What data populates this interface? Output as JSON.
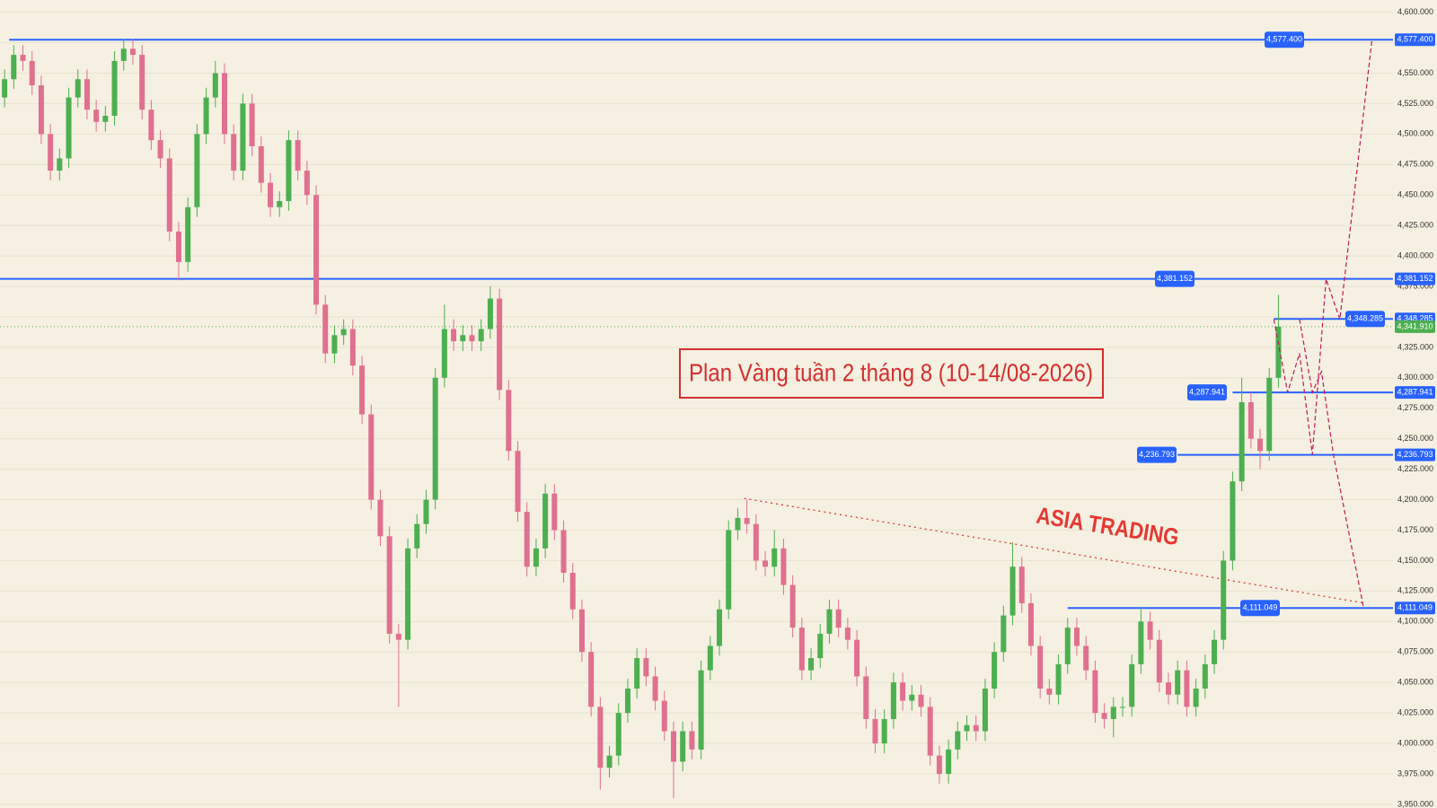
{
  "chart_data": {
    "type": "candlestick",
    "title": "Plan Vàng tuần 2 tháng 8 (10-14/08-2026)",
    "annotation": "ASIA TRADING",
    "up_color": "#4caf50",
    "down_color": "#e0708f",
    "xlim": [
      -0.5,
      151.5
    ],
    "ylim": [
      3947,
      4610
    ],
    "grid": true,
    "open": [
      4530,
      4545,
      4565,
      4560,
      4540,
      4500,
      4470,
      4480,
      4530,
      4545,
      4520,
      4510,
      4515,
      4560,
      4570,
      4565,
      4520,
      4495,
      4480,
      4420,
      4395,
      4440,
      4500,
      4530,
      4550,
      4500,
      4470,
      4525,
      4490,
      4460,
      4440,
      4445,
      4495,
      4470,
      4450,
      4360,
      4320,
      4335,
      4340,
      4310,
      4270,
      4200,
      4170,
      4090,
      4085,
      4160,
      4180,
      4200,
      4300,
      4340,
      4330,
      4335,
      4330,
      4340,
      4365,
      4290,
      4240,
      4190,
      4145,
      4160,
      4205,
      4175,
      4140,
      4110,
      4075,
      4030,
      3980,
      3990,
      4025,
      4045,
      4070,
      4055,
      4035,
      4010,
      3985,
      4010,
      3995,
      4060,
      4080,
      4110,
      4175,
      4185,
      4180,
      4150,
      4145,
      4160,
      4130,
      4095,
      4060,
      4070,
      4090,
      4110,
      4095,
      4085,
      4055,
      4020,
      4000,
      4020,
      4050,
      4035,
      4040,
      4030,
      3990,
      3975,
      3995,
      4010,
      4015,
      4010,
      4045,
      4075,
      4105,
      4145,
      4115,
      4080,
      4045,
      4040,
      4065,
      4095,
      4080,
      4060,
      4025,
      4020,
      4030,
      4030,
      4065,
      4100,
      4085,
      4050,
      4040,
      4060,
      4030,
      4045,
      4065,
      4085,
      4150,
      4215,
      4280,
      4250,
      4240,
      4300
    ],
    "high": [
      4553,
      4573,
      4573,
      4568,
      4548,
      4508,
      4488,
      4538,
      4553,
      4553,
      4528,
      4523,
      4568,
      4578,
      4578,
      4573,
      4528,
      4503,
      4488,
      4428,
      4448,
      4508,
      4538,
      4560,
      4558,
      4508,
      4533,
      4533,
      4498,
      4468,
      4453,
      4503,
      4503,
      4478,
      4458,
      4368,
      4343,
      4348,
      4348,
      4318,
      4278,
      4208,
      4178,
      4098,
      4168,
      4188,
      4208,
      4308,
      4360,
      4348,
      4343,
      4343,
      4348,
      4375,
      4373,
      4298,
      4248,
      4198,
      4168,
      4213,
      4213,
      4183,
      4148,
      4118,
      4083,
      4038,
      3998,
      4033,
      4053,
      4078,
      4078,
      4063,
      4043,
      4018,
      4018,
      4018,
      4068,
      4088,
      4118,
      4183,
      4193,
      4200,
      4188,
      4158,
      4175,
      4168,
      4138,
      4103,
      4078,
      4098,
      4118,
      4118,
      4103,
      4093,
      4063,
      4028,
      4028,
      4058,
      4058,
      4048,
      4048,
      4038,
      3998,
      4003,
      4018,
      4023,
      4023,
      4053,
      4083,
      4113,
      4165,
      4153,
      4123,
      4088,
      4053,
      4073,
      4103,
      4103,
      4088,
      4068,
      4033,
      4038,
      4038,
      4073,
      4112,
      4108,
      4093,
      4058,
      4068,
      4068,
      4053,
      4073,
      4093,
      4158,
      4223,
      4300,
      4288,
      4258,
      4308,
      4368
    ],
    "low": [
      4522,
      4537,
      4552,
      4532,
      4492,
      4462,
      4462,
      4472,
      4522,
      4512,
      4502,
      4502,
      4507,
      4552,
      4557,
      4512,
      4487,
      4472,
      4412,
      4380,
      4387,
      4432,
      4492,
      4522,
      4492,
      4462,
      4462,
      4482,
      4452,
      4432,
      4432,
      4437,
      4462,
      4442,
      4352,
      4312,
      4312,
      4327,
      4302,
      4262,
      4192,
      4162,
      4082,
      4030,
      4077,
      4152,
      4172,
      4192,
      4292,
      4322,
      4322,
      4322,
      4322,
      4332,
      4282,
      4232,
      4182,
      4137,
      4137,
      4152,
      4167,
      4132,
      4102,
      4067,
      4022,
      3962,
      3972,
      3982,
      4017,
      4037,
      4047,
      4027,
      4002,
      3955,
      3977,
      3987,
      3987,
      4052,
      4072,
      4102,
      4167,
      4172,
      4142,
      4137,
      4137,
      4122,
      4087,
      4052,
      4052,
      4062,
      4082,
      4087,
      4077,
      4047,
      4012,
      3992,
      3992,
      4012,
      4027,
      4027,
      4022,
      3982,
      3967,
      3967,
      3987,
      4002,
      4002,
      4002,
      4037,
      4067,
      4097,
      4107,
      4072,
      4037,
      4032,
      4032,
      4057,
      4072,
      4052,
      4017,
      4012,
      4005,
      4022,
      4022,
      4057,
      4077,
      4042,
      4032,
      4032,
      4022,
      4022,
      4037,
      4057,
      4077,
      4142,
      4207,
      4242,
      4225,
      4232,
      4292
    ],
    "close": [
      4545,
      4565,
      4560,
      4540,
      4500,
      4470,
      4480,
      4530,
      4545,
      4520,
      4510,
      4515,
      4560,
      4570,
      4565,
      4520,
      4495,
      4480,
      4420,
      4395,
      4440,
      4500,
      4530,
      4550,
      4500,
      4470,
      4525,
      4490,
      4460,
      4440,
      4445,
      4495,
      4470,
      4450,
      4360,
      4320,
      4335,
      4340,
      4310,
      4270,
      4200,
      4170,
      4090,
      4085,
      4160,
      4180,
      4200,
      4300,
      4340,
      4330,
      4335,
      4330,
      4340,
      4365,
      4290,
      4240,
      4190,
      4145,
      4160,
      4205,
      4175,
      4140,
      4110,
      4075,
      4030,
      3980,
      3990,
      4025,
      4045,
      4070,
      4055,
      4035,
      4010,
      3985,
      4010,
      3995,
      4060,
      4080,
      4110,
      4175,
      4185,
      4180,
      4150,
      4145,
      4160,
      4130,
      4095,
      4060,
      4070,
      4090,
      4110,
      4095,
      4085,
      4055,
      4020,
      4000,
      4020,
      4050,
      4035,
      4040,
      4030,
      3990,
      3975,
      3995,
      4010,
      4015,
      4010,
      4045,
      4075,
      4105,
      4145,
      4115,
      4080,
      4045,
      4040,
      4065,
      4095,
      4080,
      4060,
      4025,
      4020,
      4030,
      4030,
      4065,
      4100,
      4085,
      4050,
      4040,
      4060,
      4030,
      4045,
      4065,
      4085,
      4150,
      4215,
      4280,
      4250,
      4240,
      4300,
      4342
    ],
    "level_color": "#2962ff",
    "levels": [
      {
        "value": 4577.4,
        "label": "4,577.400",
        "start": 0.5
      },
      {
        "value": 4381.152,
        "label": "4,381.152",
        "start": -0.5
      },
      {
        "value": 4348.285,
        "label": "4,348.285",
        "start": 138.5
      },
      {
        "value": 4287.941,
        "label": "4,287.941",
        "start": 134
      },
      {
        "value": 4236.793,
        "label": "4,236.793",
        "start": 128
      },
      {
        "value": 4111.049,
        "label": "4,111.049",
        "start": 116
      }
    ],
    "last_price": {
      "value": 4341.91,
      "label": "4,341.910"
    },
    "trendline": {
      "x": [
        80.7,
        148.5
      ],
      "y": [
        4201,
        4115
      ]
    },
    "projections": [
      {
        "x": [
          138.5,
          140,
          141.3,
          142.7,
          144.2,
          145.7,
          149.2
        ],
        "y": [
          4348,
          4288,
          4320,
          4237,
          4381,
          4348,
          4577
        ]
      },
      {
        "x": [
          141.3,
          142.7,
          143.7,
          145,
          148.3
        ],
        "y": [
          4348,
          4288,
          4305,
          4237,
          4111
        ]
      }
    ],
    "yticks": [
      {
        "value": 3950,
        "label": "3,950.000"
      },
      {
        "value": 3975,
        "label": "3,975.000"
      },
      {
        "value": 4000,
        "label": "4,000.000"
      },
      {
        "value": 4025,
        "label": "4,025.000"
      },
      {
        "value": 4050,
        "label": "4,050.000"
      },
      {
        "value": 4075,
        "label": "4,075.000"
      },
      {
        "value": 4100,
        "label": "4,100.000"
      },
      {
        "value": 4125,
        "label": "4,125.000"
      },
      {
        "value": 4150,
        "label": "4,150.000"
      },
      {
        "value": 4175,
        "label": "4,175.000"
      },
      {
        "value": 4200,
        "label": "4,200.000"
      },
      {
        "value": 4225,
        "label": "4,225.000"
      },
      {
        "value": 4250,
        "label": "4,250.000"
      },
      {
        "value": 4275,
        "label": "4,275.000"
      },
      {
        "value": 4300,
        "label": "4,300.000"
      },
      {
        "value": 4325,
        "label": "4,325.000"
      },
      {
        "value": 4350,
        "label": "4,350.000"
      },
      {
        "value": 4375,
        "label": "4,375.000"
      },
      {
        "value": 4400,
        "label": "4,400.000"
      },
      {
        "value": 4425,
        "label": "4,425.000"
      },
      {
        "value": 4450,
        "label": "4,450.000"
      },
      {
        "value": 4475,
        "label": "4,475.000"
      },
      {
        "value": 4500,
        "label": "4,500.000"
      },
      {
        "value": 4525,
        "label": "4,525.000"
      },
      {
        "value": 4550,
        "label": "4,550.000"
      },
      {
        "value": 4575,
        "label": "4,575.000"
      },
      {
        "value": 4600,
        "label": "4,600.000"
      }
    ]
  }
}
